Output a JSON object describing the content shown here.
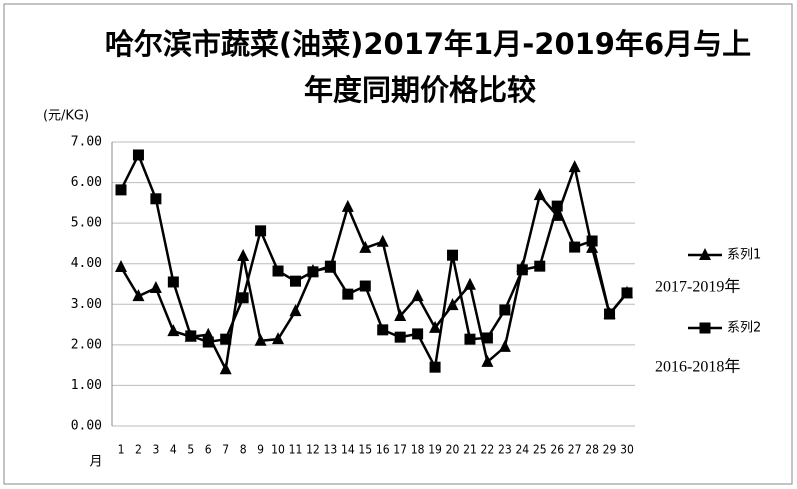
{
  "chart_data": {
    "type": "line",
    "title": [
      "哈尔滨市蔬菜(油菜)2017年1月-2019年6月与上",
      "年度同期价格比较"
    ],
    "y_label": "(元/KG)",
    "x_label": "月",
    "categories": [
      "1",
      "2",
      "3",
      "4",
      "5",
      "6",
      "7",
      "8",
      "9",
      "10",
      "11",
      "12",
      "13",
      "14",
      "15",
      "16",
      "17",
      "18",
      "19",
      "20",
      "21",
      "22",
      "23",
      "24",
      "25",
      "26",
      "27",
      "28",
      "29",
      "30"
    ],
    "series": [
      {
        "name": "系列1",
        "color": "#000000",
        "marker": "triangle",
        "period": "2017-2019年",
        "values": [
          3.92,
          3.2,
          3.4,
          2.34,
          2.2,
          2.25,
          1.4,
          4.19,
          2.1,
          2.14,
          2.83,
          3.82,
          3.9,
          5.4,
          4.39,
          4.54,
          2.71,
          3.2,
          2.42,
          2.98,
          3.48,
          1.58,
          1.95,
          3.92,
          5.69,
          5.18,
          6.38,
          4.39,
          2.76,
          3.28
        ]
      },
      {
        "name": "系列2",
        "color": "#000000",
        "marker": "square",
        "period": "2016-2018年",
        "values": [
          5.82,
          6.68,
          5.6,
          3.55,
          2.22,
          2.07,
          2.14,
          3.16,
          4.81,
          3.82,
          3.57,
          3.8,
          3.94,
          3.25,
          3.45,
          2.37,
          2.19,
          2.27,
          1.45,
          4.21,
          2.14,
          2.17,
          2.86,
          3.85,
          3.94,
          5.42,
          4.41,
          4.56,
          2.76,
          3.28
        ]
      }
    ],
    "ylim": [
      0,
      7
    ],
    "yticks": [
      {
        "value": 0,
        "label": "0.00"
      },
      {
        "value": 1,
        "label": "1.00"
      },
      {
        "value": 2,
        "label": "2.00"
      },
      {
        "value": 3,
        "label": "3.00"
      },
      {
        "value": 4,
        "label": "4.00"
      },
      {
        "value": 5,
        "label": "5.00"
      },
      {
        "value": 6,
        "label": "6.00"
      },
      {
        "value": 7,
        "label": "7.00"
      }
    ],
    "grid": true
  }
}
